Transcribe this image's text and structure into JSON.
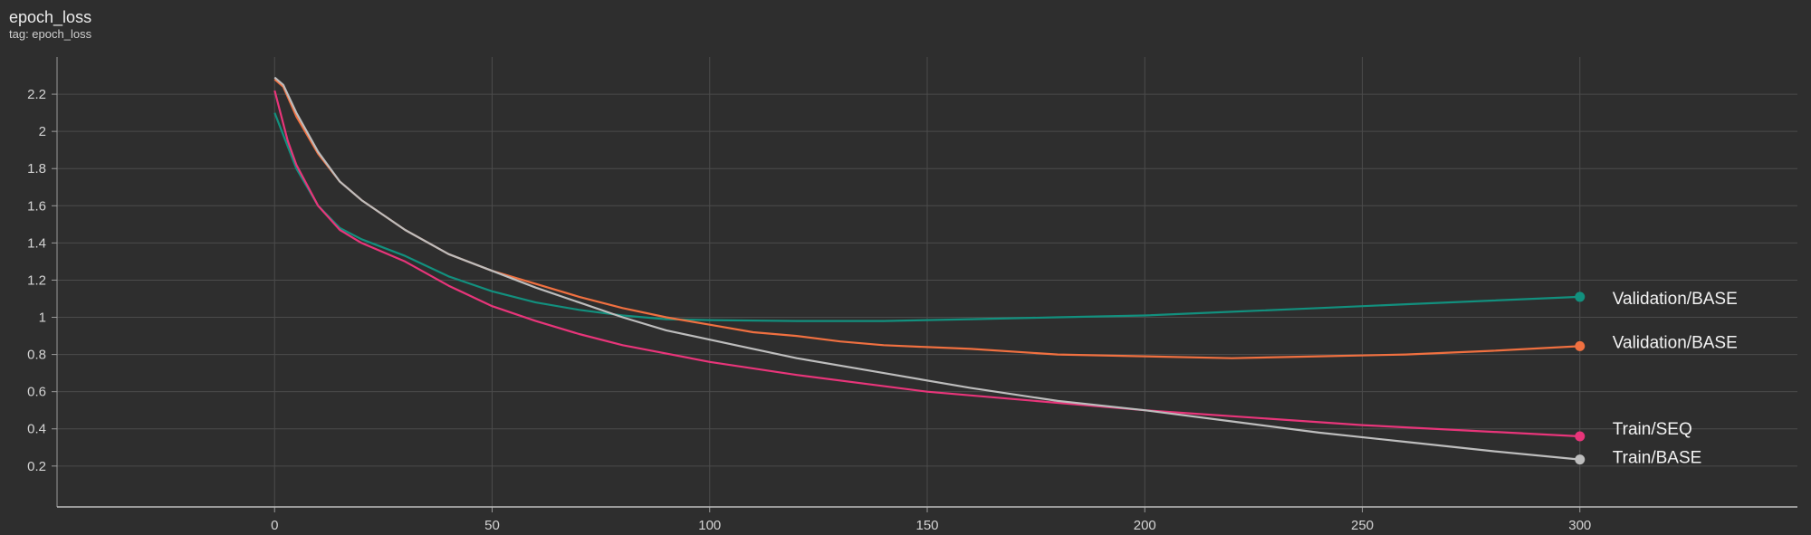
{
  "header": {
    "title": "epoch_loss",
    "subtitle": "tag: epoch_loss"
  },
  "chart_data": {
    "type": "line",
    "title": "epoch_loss",
    "subtitle": "tag: epoch_loss",
    "xlabel": "",
    "ylabel": "",
    "xlim": [
      -50,
      350
    ],
    "ylim": [
      -0.02,
      2.4
    ],
    "xticks": [
      0,
      50,
      100,
      150,
      200,
      250,
      300
    ],
    "yticks": [
      0.2,
      0.4,
      0.6,
      0.8,
      1,
      1.2,
      1.4,
      1.6,
      1.8,
      2,
      2.2
    ],
    "grid": true,
    "series": [
      {
        "name": "Validation/BASE",
        "color": "#12907e",
        "x": [
          0,
          5,
          10,
          15,
          20,
          30,
          40,
          50,
          60,
          70,
          80,
          90,
          100,
          120,
          140,
          160,
          180,
          200,
          220,
          240,
          260,
          280,
          300
        ],
        "y": [
          2.1,
          1.8,
          1.6,
          1.48,
          1.42,
          1.33,
          1.22,
          1.14,
          1.08,
          1.04,
          1.01,
          0.99,
          0.985,
          0.98,
          0.98,
          0.99,
          1.0,
          1.01,
          1.03,
          1.05,
          1.07,
          1.09,
          1.11
        ]
      },
      {
        "name": "Validation/BASE",
        "color": "#f07040",
        "x": [
          0,
          2,
          5,
          10,
          15,
          20,
          30,
          40,
          50,
          60,
          70,
          80,
          90,
          100,
          110,
          120,
          130,
          140,
          150,
          160,
          180,
          200,
          220,
          240,
          260,
          280,
          300
        ],
        "y": [
          2.28,
          2.24,
          2.08,
          1.88,
          1.73,
          1.63,
          1.47,
          1.34,
          1.25,
          1.18,
          1.11,
          1.05,
          1.0,
          0.96,
          0.92,
          0.9,
          0.87,
          0.85,
          0.84,
          0.83,
          0.8,
          0.79,
          0.78,
          0.79,
          0.8,
          0.82,
          0.845
        ]
      },
      {
        "name": "Train/SEQ",
        "color": "#e8357a",
        "x": [
          0,
          3,
          5,
          10,
          15,
          20,
          30,
          40,
          50,
          60,
          70,
          80,
          100,
          120,
          150,
          200,
          250,
          300
        ],
        "y": [
          2.22,
          1.95,
          1.82,
          1.6,
          1.47,
          1.4,
          1.3,
          1.17,
          1.06,
          0.98,
          0.91,
          0.85,
          0.76,
          0.69,
          0.6,
          0.5,
          0.42,
          0.36
        ]
      },
      {
        "name": "Train/BASE",
        "color": "#bdbdbd",
        "x": [
          0,
          2,
          5,
          10,
          15,
          20,
          30,
          40,
          50,
          60,
          70,
          80,
          90,
          100,
          120,
          140,
          160,
          180,
          200,
          220,
          240,
          260,
          280,
          300
        ],
        "y": [
          2.29,
          2.25,
          2.1,
          1.89,
          1.73,
          1.63,
          1.47,
          1.34,
          1.25,
          1.16,
          1.08,
          1.0,
          0.93,
          0.88,
          0.78,
          0.7,
          0.62,
          0.55,
          0.5,
          0.44,
          0.38,
          0.33,
          0.28,
          0.235
        ]
      }
    ],
    "legend": "right-end labels"
  }
}
